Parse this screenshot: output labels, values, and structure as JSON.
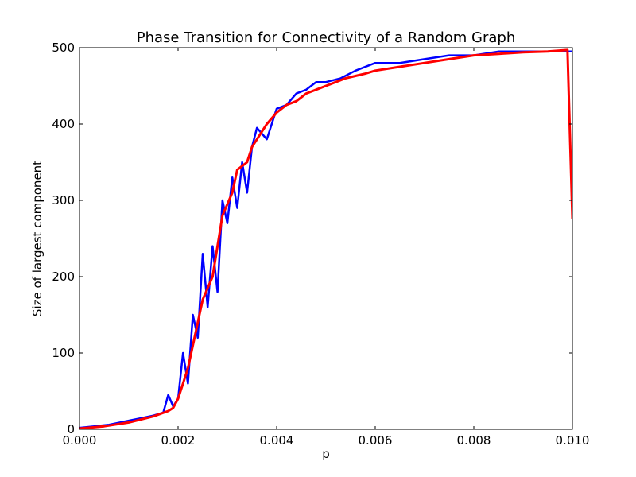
{
  "chart_data": {
    "type": "line",
    "title": "Phase Transition for Connectivity of a Random Graph",
    "xlabel": "p",
    "ylabel": "Size of largest component",
    "xlim": [
      0.0,
      0.01
    ],
    "ylim": [
      0,
      500
    ],
    "grid": false,
    "legend": "none",
    "x_ticks": [
      "0.000",
      "0.002",
      "0.004",
      "0.006",
      "0.008",
      "0.010"
    ],
    "y_ticks": [
      "0",
      "100",
      "200",
      "300",
      "400",
      "500"
    ],
    "series": [
      {
        "style": "noisy samples",
        "color": "#0000ff",
        "x": [
          0.0,
          0.0003,
          0.0006,
          0.0009,
          0.0012,
          0.0015,
          0.0017,
          0.0018,
          0.0019,
          0.002,
          0.0021,
          0.0022,
          0.0023,
          0.0024,
          0.0025,
          0.0026,
          0.0027,
          0.0028,
          0.0029,
          0.003,
          0.0031,
          0.0032,
          0.0033,
          0.0034,
          0.0035,
          0.0036,
          0.0038,
          0.004,
          0.0042,
          0.0044,
          0.0046,
          0.0048,
          0.005,
          0.0053,
          0.0056,
          0.006,
          0.0065,
          0.007,
          0.0075,
          0.008,
          0.0085,
          0.009,
          0.0095,
          0.0098,
          0.01
        ],
        "y": [
          2,
          4,
          6,
          10,
          14,
          18,
          22,
          45,
          30,
          40,
          100,
          60,
          150,
          120,
          230,
          160,
          240,
          180,
          300,
          270,
          330,
          290,
          350,
          310,
          370,
          395,
          380,
          420,
          425,
          440,
          445,
          455,
          455,
          460,
          470,
          480,
          480,
          485,
          490,
          490,
          495,
          495,
          495,
          495,
          495
        ]
      },
      {
        "style": "average",
        "color": "#ff0000",
        "x": [
          0.0,
          0.0005,
          0.001,
          0.0015,
          0.0018,
          0.0019,
          0.002,
          0.0021,
          0.0022,
          0.0023,
          0.0024,
          0.0025,
          0.0026,
          0.0027,
          0.0028,
          0.0029,
          0.003,
          0.0031,
          0.0032,
          0.0033,
          0.0034,
          0.0035,
          0.0036,
          0.0037,
          0.0038,
          0.004,
          0.0042,
          0.0044,
          0.0046,
          0.0048,
          0.005,
          0.0052,
          0.0054,
          0.0056,
          0.0058,
          0.006,
          0.0065,
          0.007,
          0.0075,
          0.008,
          0.0085,
          0.009,
          0.0095,
          0.0099,
          0.01
        ],
        "y": [
          1,
          4,
          9,
          17,
          24,
          28,
          40,
          60,
          80,
          110,
          140,
          170,
          185,
          200,
          240,
          280,
          295,
          310,
          340,
          345,
          350,
          370,
          380,
          390,
          400,
          415,
          425,
          430,
          440,
          445,
          450,
          455,
          460,
          463,
          466,
          470,
          475,
          480,
          485,
          490,
          492,
          494,
          495,
          497,
          275
        ]
      }
    ]
  }
}
